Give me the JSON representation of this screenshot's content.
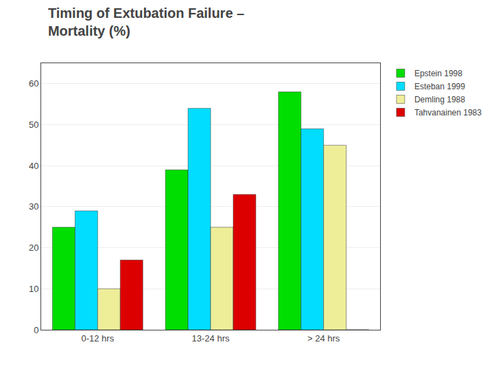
{
  "chart_data": {
    "type": "bar",
    "title": "Timing of Extubation Failure –",
    "subtitle": "Mortality (%)",
    "categories": [
      "0-12 hrs",
      "13-24 hrs",
      "> 24 hrs"
    ],
    "series": [
      {
        "name": "Epstein 1998",
        "color": "#00dd00",
        "values": [
          25,
          39,
          58
        ]
      },
      {
        "name": "Esteban 1999",
        "color": "#00ddff",
        "values": [
          29,
          54,
          49
        ]
      },
      {
        "name": "Demling 1988",
        "color": "#eeee99",
        "values": [
          10,
          25,
          45
        ]
      },
      {
        "name": "Tahvanainen 1983",
        "color": "#dd0000",
        "values": [
          17,
          33,
          0
        ]
      }
    ],
    "ylim": [
      0,
      65
    ],
    "yticks": [
      0,
      10,
      20,
      30,
      40,
      50,
      60
    ],
    "grid": true,
    "legend": "right"
  }
}
